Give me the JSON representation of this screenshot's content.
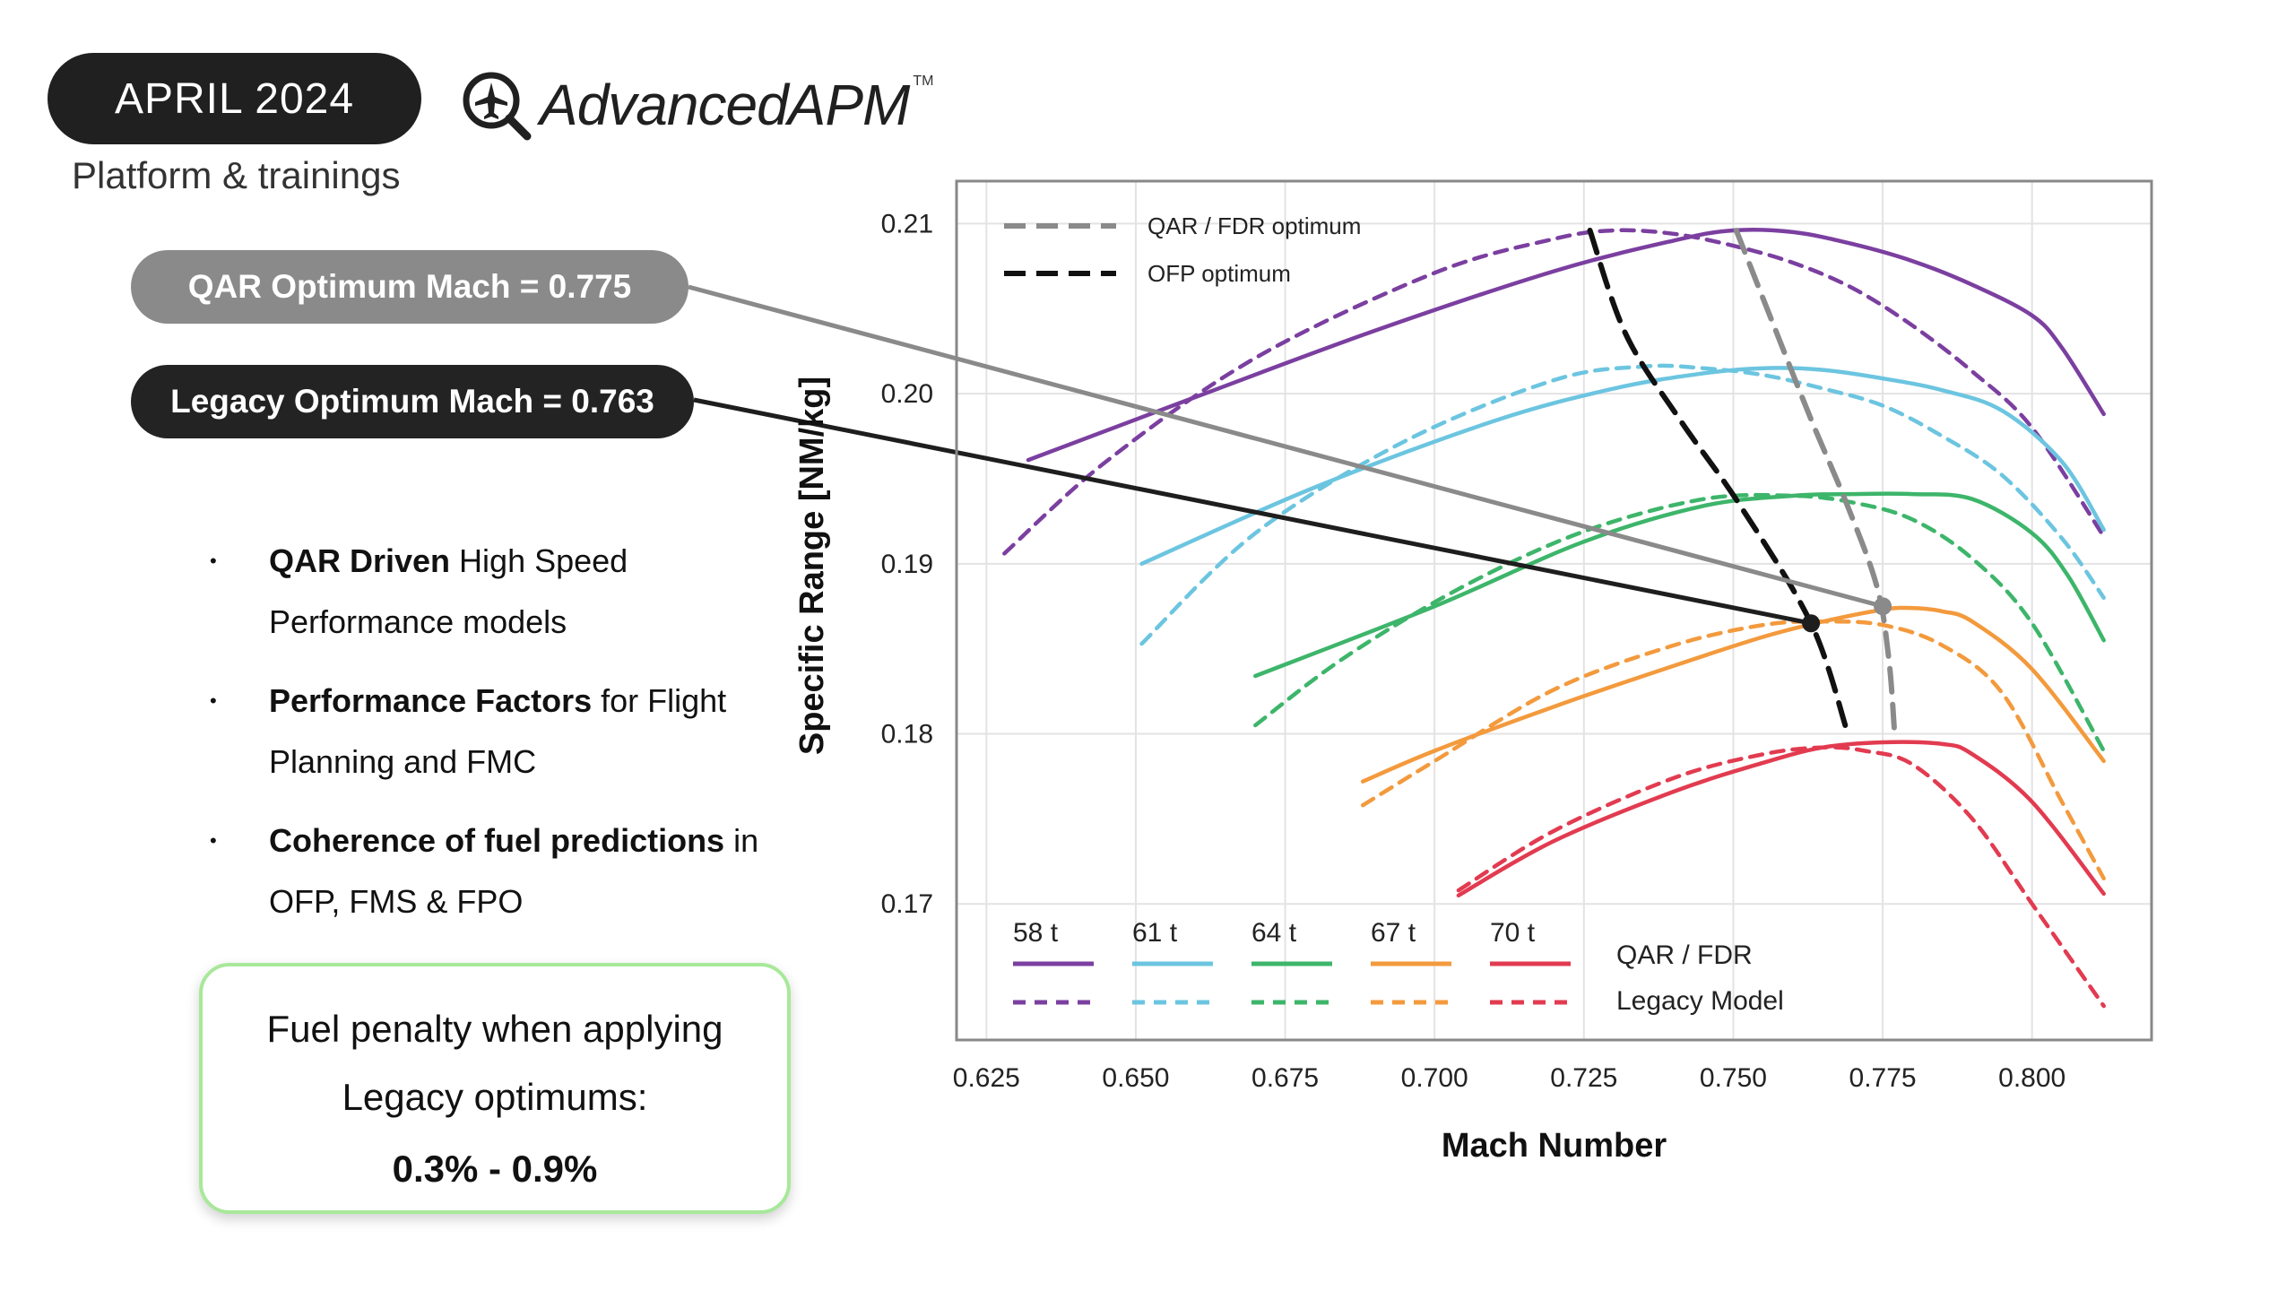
{
  "header": {
    "date": "APRIL 2024",
    "logo_text": "AdvancedAPM",
    "logo_tm": "TM",
    "subtitle": "Platform & trainings"
  },
  "callouts": {
    "qar": "QAR Optimum Mach = 0.775",
    "legacy": "Legacy Optimum Mach = 0.763"
  },
  "bullets": [
    {
      "bold": "QAR Driven",
      "text": " High Speed Performance models"
    },
    {
      "bold": "Performance Factors",
      "text": " for Flight Planning and FMC"
    },
    {
      "bold": "Coherence of fuel predictions",
      "text": " in OFP, FMS & FPO"
    }
  ],
  "penalty": {
    "line1": "Fuel penalty when applying",
    "line2": "Legacy optimums:",
    "value": "0.3% - 0.9%"
  },
  "colors": {
    "58": "#7b3fa0",
    "61": "#6cc5e0",
    "64": "#3db56a",
    "67": "#f39a3d",
    "70": "#e23b50",
    "qar_opt": "#8a8a8a",
    "ofp_opt": "#111111"
  },
  "chart_data": {
    "type": "line",
    "xlabel": "Mach Number",
    "ylabel": "Specific Range [NM/kg]",
    "xlim": [
      0.62,
      0.82
    ],
    "ylim": [
      0.162,
      0.2125
    ],
    "xticks": [
      "0.625",
      "0.650",
      "0.675",
      "0.700",
      "0.725",
      "0.750",
      "0.775",
      "0.800"
    ],
    "yticks": [
      "0.17",
      "0.18",
      "0.19",
      "0.20",
      "0.21"
    ],
    "grid": true,
    "legend": {
      "weights": [
        "58 t",
        "61 t",
        "64 t",
        "67 t",
        "70 t"
      ],
      "solid_label": "QAR / FDR",
      "dashed_label": "Legacy Model",
      "qar_opt_label": "QAR / FDR optimum",
      "ofp_opt_label": "OFP optimum"
    },
    "series": [
      {
        "weight": "58 t",
        "model": "QAR / FDR",
        "x": [
          0.632,
          0.66,
          0.69,
          0.72,
          0.74,
          0.75,
          0.76,
          0.77,
          0.78,
          0.79,
          0.8,
          0.805,
          0.812
        ],
        "y": [
          0.1961,
          0.1998,
          0.2037,
          0.2072,
          0.209,
          0.2096,
          0.2095,
          0.2088,
          0.2078,
          0.2064,
          0.2046,
          0.2027,
          0.1988
        ]
      },
      {
        "weight": "58 t",
        "model": "Legacy Model",
        "x": [
          0.628,
          0.645,
          0.67,
          0.7,
          0.72,
          0.73,
          0.74,
          0.75,
          0.76,
          0.77,
          0.78,
          0.79,
          0.8,
          0.812
        ],
        "y": [
          0.1906,
          0.196,
          0.2021,
          0.2071,
          0.2091,
          0.2096,
          0.2094,
          0.2087,
          0.2077,
          0.2062,
          0.204,
          0.2013,
          0.198,
          0.1916
        ]
      },
      {
        "weight": "61 t",
        "model": "QAR / FDR",
        "x": [
          0.651,
          0.68,
          0.71,
          0.73,
          0.745,
          0.755,
          0.765,
          0.775,
          0.785,
          0.795,
          0.805,
          0.812
        ],
        "y": [
          0.19,
          0.1945,
          0.1984,
          0.2003,
          0.2012,
          0.2015,
          0.2014,
          0.2009,
          0.2002,
          0.199,
          0.196,
          0.192
        ]
      },
      {
        "weight": "61 t",
        "model": "Legacy Model",
        "x": [
          0.651,
          0.67,
          0.695,
          0.72,
          0.735,
          0.745,
          0.755,
          0.765,
          0.775,
          0.785,
          0.795,
          0.805,
          0.812
        ],
        "y": [
          0.1853,
          0.1918,
          0.1972,
          0.2008,
          0.2016,
          0.2015,
          0.2011,
          0.2003,
          0.1993,
          0.1975,
          0.1952,
          0.1915,
          0.188
        ]
      },
      {
        "weight": "64 t",
        "model": "QAR / FDR",
        "x": [
          0.67,
          0.7,
          0.725,
          0.745,
          0.76,
          0.77,
          0.78,
          0.79,
          0.8,
          0.806,
          0.812
        ],
        "y": [
          0.1834,
          0.1875,
          0.1913,
          0.1934,
          0.194,
          0.1941,
          0.1941,
          0.1938,
          0.1918,
          0.1893,
          0.1855
        ]
      },
      {
        "weight": "64 t",
        "model": "Legacy Model",
        "x": [
          0.67,
          0.685,
          0.705,
          0.725,
          0.745,
          0.76,
          0.77,
          0.78,
          0.79,
          0.8,
          0.812
        ],
        "y": [
          0.1805,
          0.1845,
          0.1887,
          0.1919,
          0.1938,
          0.194,
          0.1936,
          0.1926,
          0.1903,
          0.1865,
          0.179
        ]
      },
      {
        "weight": "67 t",
        "model": "QAR / FDR",
        "x": [
          0.688,
          0.7,
          0.72,
          0.74,
          0.755,
          0.765,
          0.775,
          0.78,
          0.785,
          0.79,
          0.8,
          0.812
        ],
        "y": [
          0.1772,
          0.179,
          0.1816,
          0.184,
          0.1857,
          0.1866,
          0.1873,
          0.1874,
          0.1872,
          0.1866,
          0.1838,
          0.1784
        ]
      },
      {
        "weight": "67 t",
        "model": "Legacy Model",
        "x": [
          0.688,
          0.7,
          0.72,
          0.74,
          0.755,
          0.765,
          0.775,
          0.785,
          0.795,
          0.805,
          0.812
        ],
        "y": [
          0.1758,
          0.1784,
          0.1826,
          0.1852,
          0.1864,
          0.1866,
          0.1864,
          0.1852,
          0.1824,
          0.176,
          0.1715
        ]
      },
      {
        "weight": "70 t",
        "model": "QAR / FDR",
        "x": [
          0.704,
          0.72,
          0.74,
          0.755,
          0.765,
          0.775,
          0.785,
          0.79,
          0.8,
          0.812
        ],
        "y": [
          0.1705,
          0.1737,
          0.1766,
          0.1783,
          0.1792,
          0.1795,
          0.1794,
          0.1788,
          0.176,
          0.1706
        ]
      },
      {
        "weight": "70 t",
        "model": "Legacy Model",
        "x": [
          0.704,
          0.72,
          0.74,
          0.755,
          0.765,
          0.772,
          0.78,
          0.79,
          0.8,
          0.812
        ],
        "y": [
          0.1708,
          0.1743,
          0.1774,
          0.1788,
          0.1792,
          0.179,
          0.1782,
          0.175,
          0.17,
          0.164
        ]
      },
      {
        "name": "QAR / FDR optimum",
        "x": [
          0.7505,
          0.757,
          0.763,
          0.769,
          0.774,
          0.776,
          0.777
        ],
        "y": [
          0.2096,
          0.2038,
          0.1985,
          0.1935,
          0.1887,
          0.1845,
          0.18
        ]
      },
      {
        "name": "OFP optimum",
        "x": [
          0.726,
          0.732,
          0.741,
          0.751,
          0.763,
          0.769
        ],
        "y": [
          0.2096,
          0.2035,
          0.1985,
          0.1935,
          0.1865,
          0.1802
        ]
      }
    ],
    "optimum_points": [
      {
        "x": 0.775,
        "y": 0.1875
      },
      {
        "x": 0.763,
        "y": 0.1865
      }
    ]
  }
}
